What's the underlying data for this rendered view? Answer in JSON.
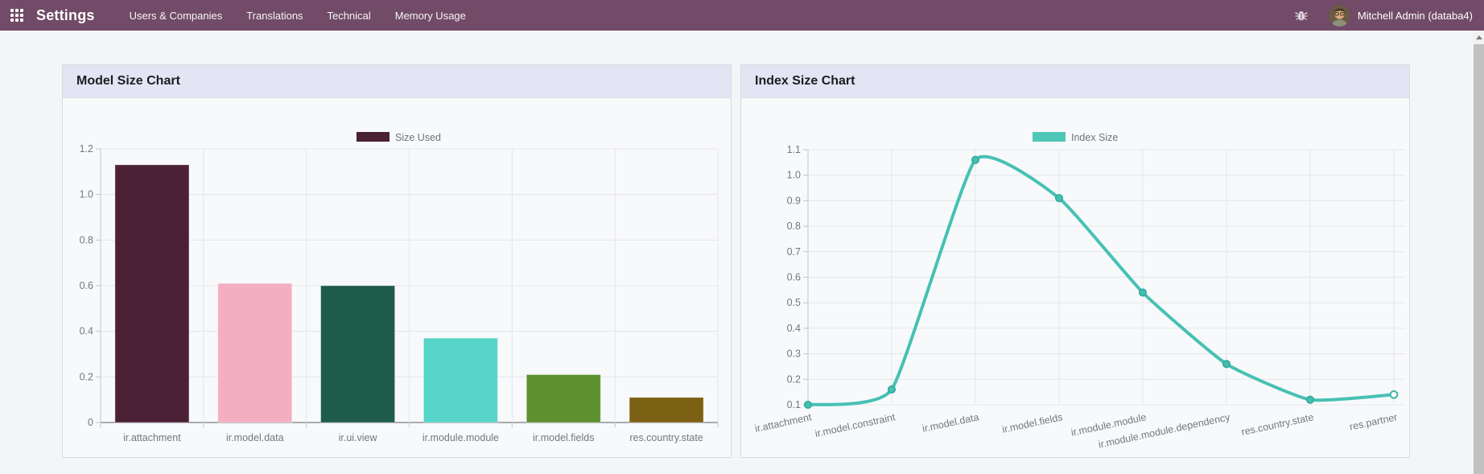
{
  "topbar": {
    "app_name": "Settings",
    "menu_items": [
      "Users & Companies",
      "Translations",
      "Technical",
      "Memory Usage"
    ],
    "user_label": "Mitchell Admin (databa4)",
    "icons": {
      "apps": "grid-3x3",
      "debug": "bug",
      "avatar": "user-photo"
    },
    "bg_color": "#714b67"
  },
  "chart_data": [
    {
      "type": "bar",
      "title": "Model Size Chart",
      "legend": {
        "label": "Size Used",
        "color": "#4a2135"
      },
      "categories": [
        "ir.attachment",
        "ir.model.data",
        "ir.ui.view",
        "ir.module.module",
        "ir.model.fields",
        "res.country.state"
      ],
      "values": [
        1.13,
        0.61,
        0.6,
        0.37,
        0.21,
        0.11
      ],
      "bar_colors": [
        "#4a2135",
        "#f4aec2",
        "#1e5b49",
        "#56d5c8",
        "#5e9230",
        "#7c6115"
      ],
      "ylim": [
        0,
        1.2
      ],
      "yticks": [
        {
          "label": "1.2",
          "value": 1.2
        },
        {
          "label": "1.0",
          "value": 1.0
        },
        {
          "label": "0.8",
          "value": 0.8
        },
        {
          "label": "0.6",
          "value": 0.6
        },
        {
          "label": "0.4",
          "value": 0.4
        },
        {
          "label": "0.2",
          "value": 0.2
        },
        {
          "label": "0",
          "value": 0.0
        }
      ],
      "grid": true,
      "legend_position": "top-center"
    },
    {
      "type": "line",
      "title": "Index Size Chart",
      "legend": {
        "label": "Index Size",
        "color": "#4fc7b8"
      },
      "categories": [
        "ir.attachment",
        "ir.model.constraint",
        "ir.model.data",
        "ir.model.fields",
        "ir.module.module",
        "ir.module.module.dependency",
        "res.country.state",
        "res.partner"
      ],
      "values": [
        0.1,
        0.16,
        1.06,
        0.91,
        0.54,
        0.26,
        0.12,
        0.14
      ],
      "line_color": "#47c1b3",
      "ylim": [
        0.1,
        1.1
      ],
      "yticks": [
        {
          "label": "1.1",
          "value": 1.1
        },
        {
          "label": "1.0",
          "value": 1.0
        },
        {
          "label": "0.9",
          "value": 0.9
        },
        {
          "label": "0.8",
          "value": 0.8
        },
        {
          "label": "0.7",
          "value": 0.7
        },
        {
          "label": "0.6",
          "value": 0.6
        },
        {
          "label": "0.5",
          "value": 0.5
        },
        {
          "label": "0.4",
          "value": 0.4
        },
        {
          "label": "0.3",
          "value": 0.3
        },
        {
          "label": "0.2",
          "value": 0.2
        },
        {
          "label": "0.1",
          "value": 0.1
        }
      ],
      "grid": true,
      "xtick_rotation": -12,
      "legend_position": "top-center"
    }
  ]
}
